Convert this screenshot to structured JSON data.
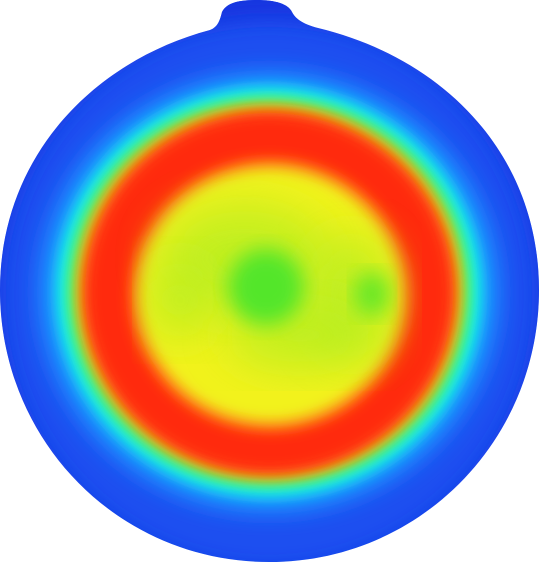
{
  "image": {
    "subject": "heat-map-disc",
    "palette": {
      "outer_blue": "#1d4ff0",
      "outer_blue_edge": "#1435e0",
      "sky_blue": "#1a8cff",
      "cyan": "#13f0f0",
      "green_ring": "#2ff080",
      "yellow_green": "#c8f51a",
      "orange_transition": "#ff7a18",
      "red_band": "#ff2b0c",
      "core_yellow": "#f2f21a",
      "core_lime": "#b4ee24",
      "center_green": "#52e62a"
    }
  }
}
